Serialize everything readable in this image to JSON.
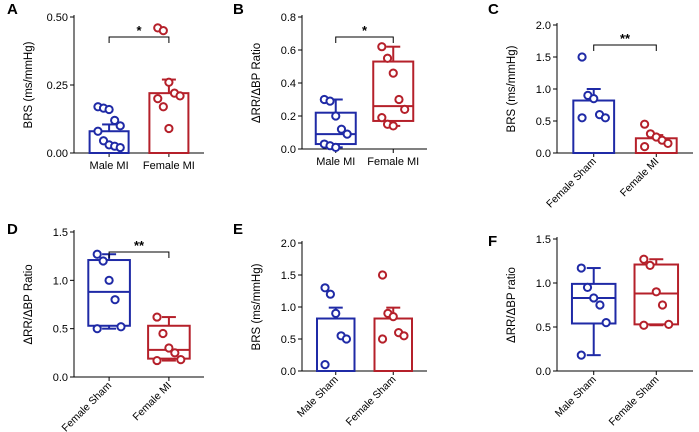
{
  "colors": {
    "male": "#1f2aa6",
    "female": "#b5202a",
    "axis": "#000000"
  },
  "chart_data": [
    {
      "panel": "A",
      "type": "bar",
      "ylabel": "BRS (ms/mmHg)",
      "ylim": [
        0,
        0.5
      ],
      "yticks": [
        0,
        0.25,
        0.5
      ],
      "ytick_labels": [
        "0.00",
        "0.25",
        "0.50"
      ],
      "categories": [
        "Male MI",
        "Female MI"
      ],
      "tick_rotation": 0,
      "series": [
        {
          "name": "Male MI",
          "color": "male",
          "mean": 0.08,
          "sem": 0.025,
          "points": [
            0.17,
            0.165,
            0.16,
            0.12,
            0.1,
            0.08,
            0.045,
            0.03,
            0.025,
            0.02
          ]
        },
        {
          "name": "Female MI",
          "color": "female",
          "mean": 0.22,
          "sem": 0.05,
          "points": [
            0.46,
            0.45,
            0.26,
            0.22,
            0.21,
            0.2,
            0.17,
            0.09
          ]
        }
      ],
      "significance": "*"
    },
    {
      "panel": "B",
      "type": "box",
      "ylabel": "ΔRR/ΔBP Ratio",
      "ylim": [
        0,
        0.8
      ],
      "yticks": [
        0,
        0.2,
        0.4,
        0.6,
        0.8
      ],
      "ytick_labels": [
        "0.0",
        "0.2",
        "0.4",
        "0.6",
        "0.8"
      ],
      "categories": [
        "Male MI",
        "Female MI"
      ],
      "tick_rotation": 0,
      "series": [
        {
          "name": "Male MI",
          "color": "male",
          "min": 0.01,
          "q1": 0.03,
          "median": 0.09,
          "q3": 0.22,
          "max": 0.3,
          "points": [
            0.3,
            0.29,
            0.2,
            0.12,
            0.09,
            0.03,
            0.02,
            0.01
          ]
        },
        {
          "name": "Female MI",
          "color": "female",
          "min": 0.14,
          "q1": 0.17,
          "median": 0.26,
          "q3": 0.53,
          "max": 0.62,
          "points": [
            0.62,
            0.55,
            0.46,
            0.3,
            0.24,
            0.19,
            0.15,
            0.14
          ]
        }
      ],
      "significance": "*"
    },
    {
      "panel": "C",
      "type": "bar",
      "ylabel": "BRS (ms/mmHg)",
      "ylim": [
        0,
        2.0
      ],
      "yticks": [
        0,
        0.5,
        1.0,
        1.5,
        2.0
      ],
      "ytick_labels": [
        "0.0",
        "0.5",
        "1.0",
        "1.5",
        "2.0"
      ],
      "categories": [
        "Female Sham",
        "Female MI"
      ],
      "tick_rotation": -45,
      "series": [
        {
          "name": "Female Sham",
          "color": "male",
          "mean": 0.82,
          "sem": 0.18,
          "points": [
            1.5,
            0.9,
            0.85,
            0.6,
            0.55,
            0.55
          ]
        },
        {
          "name": "Female MI",
          "color": "female",
          "mean": 0.23,
          "sem": 0.05,
          "points": [
            0.45,
            0.3,
            0.25,
            0.2,
            0.15,
            0.1
          ]
        }
      ],
      "significance": "**"
    },
    {
      "panel": "D",
      "type": "box",
      "ylabel": "ΔRR/ΔBP Ratio",
      "ylim": [
        0,
        1.5
      ],
      "yticks": [
        0,
        0.5,
        1.0,
        1.5
      ],
      "ytick_labels": [
        "0.0",
        "0.5",
        "1.0",
        "1.5"
      ],
      "categories": [
        "Female Sham",
        "Female MI"
      ],
      "tick_rotation": -45,
      "series": [
        {
          "name": "Female Sham",
          "color": "male",
          "min": 0.5,
          "q1": 0.53,
          "median": 0.88,
          "q3": 1.21,
          "max": 1.27,
          "points": [
            1.27,
            1.2,
            1.0,
            0.8,
            0.52,
            0.5
          ]
        },
        {
          "name": "Female MI",
          "color": "female",
          "min": 0.17,
          "q1": 0.19,
          "median": 0.28,
          "q3": 0.53,
          "max": 0.62,
          "points": [
            0.62,
            0.45,
            0.3,
            0.25,
            0.18,
            0.17
          ]
        }
      ],
      "significance": "**"
    },
    {
      "panel": "E",
      "type": "bar",
      "ylabel": "BRS (ms/mmHg)",
      "ylim": [
        0,
        2.0
      ],
      "yticks": [
        0,
        0.5,
        1.0,
        1.5,
        2.0
      ],
      "ytick_labels": [
        "0.0",
        "0.5",
        "1.0",
        "1.5",
        "2.0"
      ],
      "categories": [
        "Male Sham",
        "Female Sham"
      ],
      "tick_rotation": -45,
      "series": [
        {
          "name": "Male Sham",
          "color": "male",
          "mean": 0.82,
          "sem": 0.17,
          "points": [
            1.3,
            1.2,
            0.9,
            0.55,
            0.5,
            0.1
          ]
        },
        {
          "name": "Female Sham",
          "color": "female",
          "mean": 0.82,
          "sem": 0.17,
          "points": [
            1.5,
            0.9,
            0.85,
            0.6,
            0.55,
            0.5
          ]
        }
      ],
      "significance": ""
    },
    {
      "panel": "F",
      "type": "box",
      "ylabel": "ΔRR/ΔBP ratio",
      "ylim": [
        0,
        1.5
      ],
      "yticks": [
        0,
        0.5,
        1.0,
        1.5
      ],
      "ytick_labels": [
        "0.0",
        "0.5",
        "1.0",
        "1.5"
      ],
      "categories": [
        "Male Sham",
        "Female Sham"
      ],
      "tick_rotation": -45,
      "series": [
        {
          "name": "Male Sham",
          "color": "male",
          "min": 0.18,
          "q1": 0.54,
          "median": 0.83,
          "q3": 0.99,
          "max": 1.17,
          "points": [
            1.17,
            0.95,
            0.83,
            0.75,
            0.55,
            0.18
          ]
        },
        {
          "name": "Female Sham",
          "color": "female",
          "min": 0.52,
          "q1": 0.53,
          "median": 0.88,
          "q3": 1.21,
          "max": 1.27,
          "points": [
            1.27,
            1.2,
            0.9,
            0.75,
            0.53,
            0.52
          ]
        }
      ],
      "significance": ""
    }
  ]
}
